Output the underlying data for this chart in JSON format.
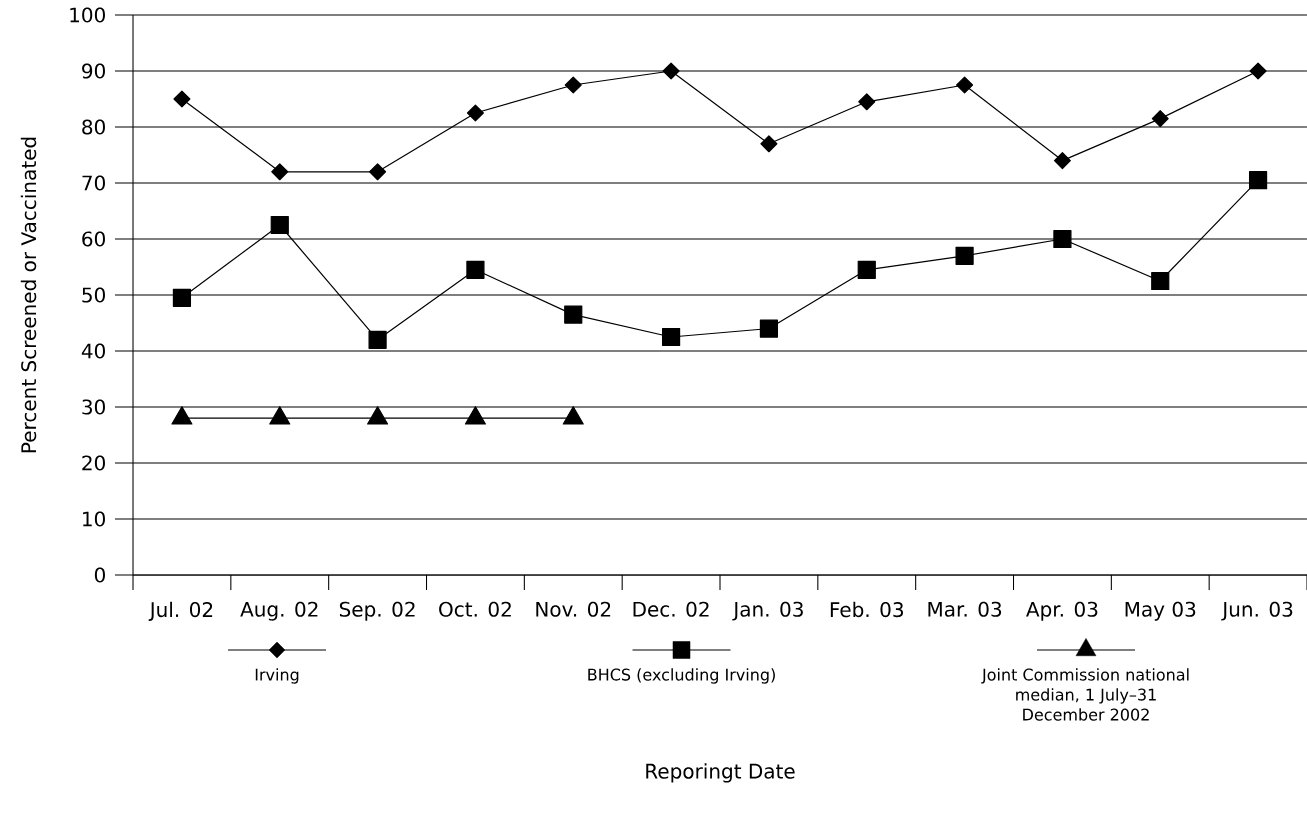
{
  "chart_data": {
    "type": "line",
    "ylabel": "Percent Screened or Vaccinated",
    "annotations": [
      "Reporingt Date"
    ],
    "categories": [
      "Jul. 02",
      "Aug. 02",
      "Sep. 02",
      "Oct. 02",
      "Nov. 02",
      "Dec. 02",
      "Jan. 03",
      "Feb. 03",
      "Mar. 03",
      "Apr. 03",
      "May 03",
      "Jun. 03"
    ],
    "ylim": [
      0,
      100
    ],
    "yticks": [
      0,
      10,
      20,
      30,
      40,
      50,
      60,
      70,
      80,
      90,
      100
    ],
    "grid": "y",
    "legend": "bottom",
    "line_style": "solid",
    "series": [
      {
        "name": "Irving",
        "color": "#000000",
        "marker": "diamond",
        "values": [
          85,
          72,
          72,
          82.5,
          87.5,
          90,
          77,
          84.5,
          87.5,
          74,
          81.5,
          90
        ]
      },
      {
        "name": "BHCS (excluding Irving)",
        "color": "#000000",
        "marker": "square",
        "values": [
          49.5,
          62.5,
          42,
          54.5,
          46.5,
          42.5,
          44,
          54.5,
          57,
          60,
          52.5,
          70.5
        ]
      },
      {
        "name": "Joint Commission national median, 1 July–31 December 2002",
        "color": "#000000",
        "marker": "triangle",
        "values": [
          28,
          28,
          28,
          28,
          28,
          null,
          null,
          null,
          null,
          null,
          null,
          null
        ]
      }
    ]
  }
}
